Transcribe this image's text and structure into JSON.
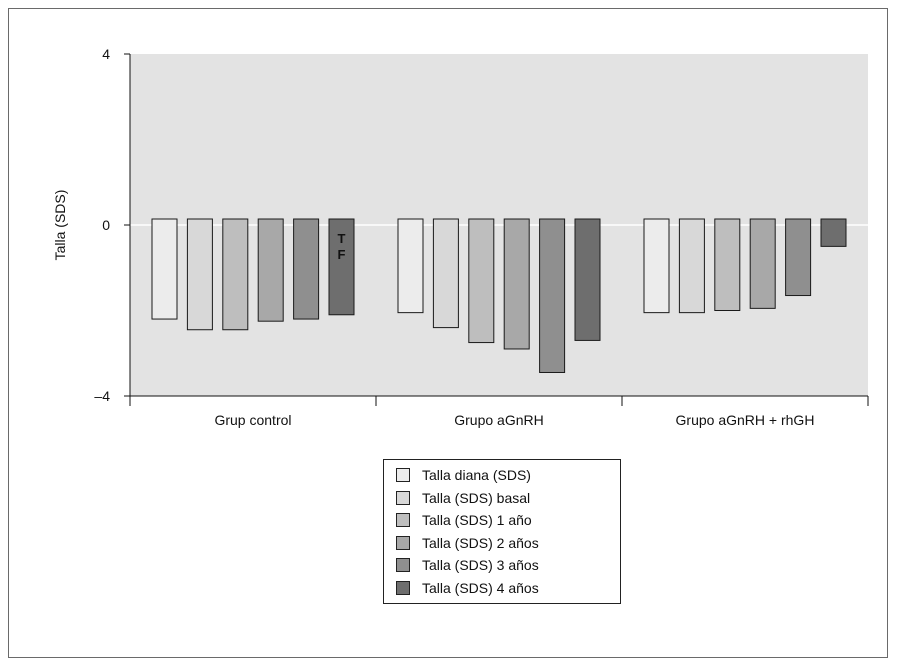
{
  "chart_data": {
    "type": "bar",
    "ylabel": "Talla (SDS)",
    "ylim": [
      -4,
      4
    ],
    "yticks": [
      {
        "value": 4,
        "label": "4"
      },
      {
        "value": 0,
        "label": "0"
      },
      {
        "value": -4,
        "label": "–4"
      }
    ],
    "categories": [
      "Grup control",
      "Grupo aGnRH",
      "Grupo aGnRH + rhGH"
    ],
    "grid": false,
    "legend_position": "bottom-center",
    "background_color": "#e3e3e3",
    "series": [
      {
        "name": "Talla diana (SDS)",
        "color": "#ececec",
        "values": [
          -2.2,
          -2.05,
          -2.05
        ]
      },
      {
        "name": "Talla (SDS) basal",
        "color": "#d8d8d8",
        "values": [
          -2.45,
          -2.4,
          -2.05
        ]
      },
      {
        "name": "Talla (SDS) 1 año",
        "color": "#bebebe",
        "values": [
          -2.45,
          -2.75,
          -2.0
        ]
      },
      {
        "name": "Talla (SDS) 2 años",
        "color": "#a8a8a8",
        "values": [
          -2.25,
          -2.9,
          -1.95
        ]
      },
      {
        "name": "Talla (SDS) 3 años",
        "color": "#8f8f8f",
        "values": [
          -2.2,
          -3.45,
          -1.65
        ]
      },
      {
        "name": "Talla (SDS) 4 años",
        "color": "#6e6e6e",
        "values": [
          -2.1,
          -2.7,
          -0.5
        ]
      }
    ],
    "annotations": [
      {
        "category": 0,
        "series": 5,
        "text": "T\nF"
      }
    ]
  }
}
